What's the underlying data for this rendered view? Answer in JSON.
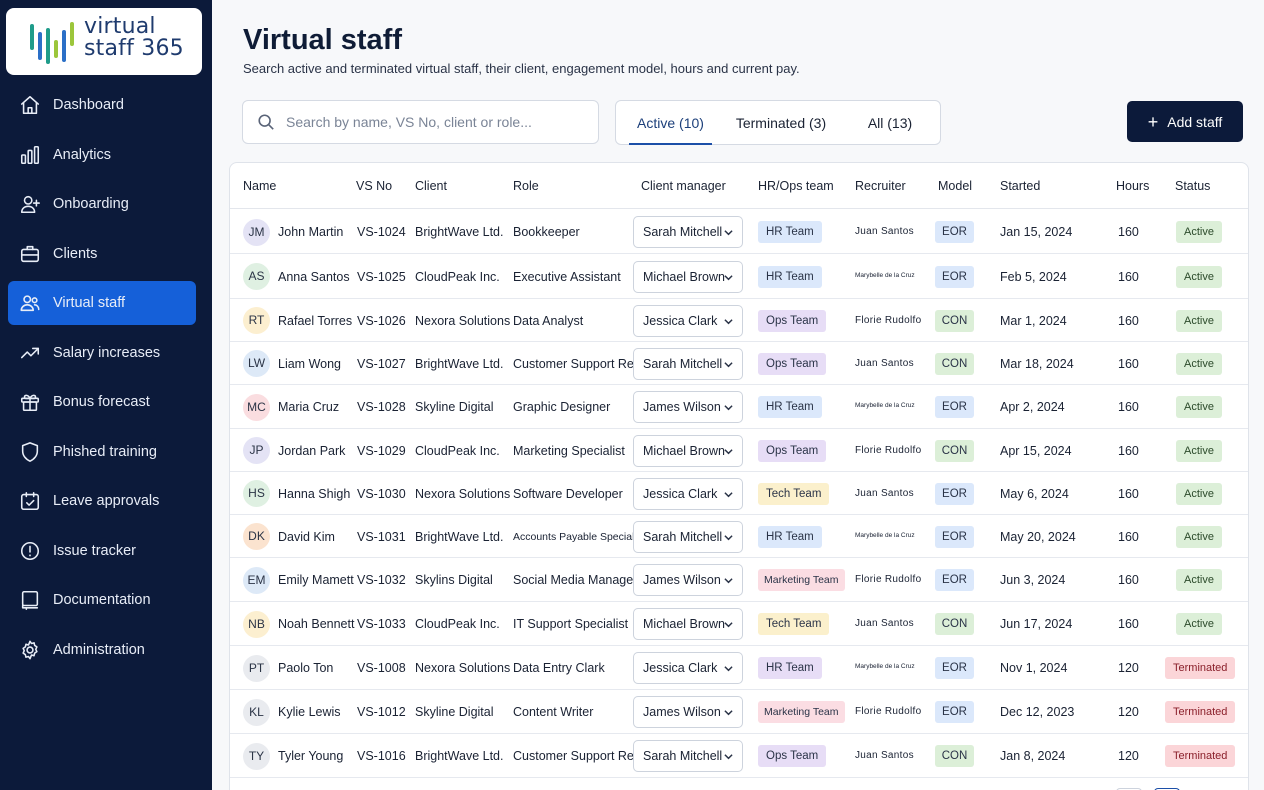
{
  "app": {
    "logo_line1": "virtual",
    "logo_line2": "staff 365"
  },
  "sidebar": {
    "items": [
      {
        "label": "Dashboard",
        "icon": "home-icon"
      },
      {
        "label": "Analytics",
        "icon": "bar-chart-icon"
      },
      {
        "label": "Onboarding",
        "icon": "user-add-icon"
      },
      {
        "label": "Clients",
        "icon": "briefcase-icon"
      },
      {
        "label": "Virtual staff",
        "icon": "users-icon",
        "active": true
      },
      {
        "label": "Salary increases",
        "icon": "trending-up-icon"
      },
      {
        "label": "Bonus forecast",
        "icon": "gift-icon"
      },
      {
        "label": "Phished training",
        "icon": "shield-icon"
      },
      {
        "label": "Leave approvals",
        "icon": "calendar-check-icon"
      },
      {
        "label": "Issue tracker",
        "icon": "alert-circle-icon"
      },
      {
        "label": "Documentation",
        "icon": "book-icon"
      },
      {
        "label": "Administration",
        "icon": "gear-icon"
      }
    ]
  },
  "header": {
    "title": "Virtual staff",
    "subtitle": "Search active and terminated virtual staff, their client, engagement model, hours and current pay."
  },
  "search": {
    "placeholder": "Search by name, VS No, client or role...",
    "value": ""
  },
  "tabs": [
    {
      "label": "Active (10)",
      "active": true
    },
    {
      "label": "Terminated (3)",
      "active": false
    },
    {
      "label": "All (13)",
      "active": false
    }
  ],
  "add_button": {
    "label": "Add staff"
  },
  "table": {
    "columns": [
      "Name",
      "VS No",
      "Client",
      "Role",
      "Client manager",
      "HR/Ops team",
      "Recruiter",
      "Model",
      "Started",
      "Hours",
      "Status"
    ],
    "rows": [
      {
        "initials": "JM",
        "avatar_color": "#e4e3f5",
        "name": "John Martin",
        "vs_no": "VS-1024",
        "client": "BrightWave Ltd.",
        "role": "Bookkeeper",
        "manager": "Sarah Mitchell",
        "team": "HR Team",
        "team_type": "hr",
        "recruiter": "Juan Santos",
        "model": "EOR",
        "started": "Jan 15, 2024",
        "hours": "160",
        "status": "Active"
      },
      {
        "initials": "AS",
        "avatar_color": "#dff0e2",
        "name": "Anna Santos",
        "vs_no": "VS-1025",
        "client": "CloudPeak Inc.",
        "role": "Executive Assistant",
        "manager": "Michael Brown",
        "team": "HR Team",
        "team_type": "hr",
        "recruiter": "Marybelle de la Cruz",
        "model": "EOR",
        "started": "Feb 5, 2024",
        "hours": "160",
        "status": "Active"
      },
      {
        "initials": "RT",
        "avatar_color": "#fcefd0",
        "name": "Rafael Torres",
        "vs_no": "VS-1026",
        "client": "Nexora Solutions",
        "role": "Data Analyst",
        "manager": "Jessica Clark",
        "team": "Ops Team",
        "team_type": "ops",
        "recruiter": "Florie Rudolfo",
        "model": "CON",
        "started": "Mar 1, 2024",
        "hours": "160",
        "status": "Active"
      },
      {
        "initials": "LW",
        "avatar_color": "#dde9f7",
        "name": "Liam Wong",
        "vs_no": "VS-1027",
        "client": "BrightWave Ltd.",
        "role": "Customer Support Rep",
        "manager": "Sarah Mitchell",
        "team": "Ops Team",
        "team_type": "ops",
        "recruiter": "Juan Santos",
        "model": "CON",
        "started": "Mar 18, 2024",
        "hours": "160",
        "status": "Active"
      },
      {
        "initials": "MC",
        "avatar_color": "#fadde0",
        "name": "Maria Cruz",
        "vs_no": "VS-1028",
        "client": "Skyline Digital",
        "role": "Graphic Designer",
        "manager": "James Wilson",
        "team": "HR Team",
        "team_type": "hr",
        "recruiter": "Marybelle de la Cruz",
        "model": "EOR",
        "started": "Apr 2, 2024",
        "hours": "160",
        "status": "Active"
      },
      {
        "initials": "JP",
        "avatar_color": "#e4e3f5",
        "name": "Jordan Park",
        "vs_no": "VS-1029",
        "client": "CloudPeak Inc.",
        "role": "Marketing Specialist",
        "manager": "Michael Brown",
        "team": "Ops Team",
        "team_type": "ops",
        "recruiter": "Florie Rudolfo",
        "model": "CON",
        "started": "Apr 15, 2024",
        "hours": "160",
        "status": "Active"
      },
      {
        "initials": "HS",
        "avatar_color": "#dff0e2",
        "name": "Hanna Shigh",
        "vs_no": "VS-1030",
        "client": "Nexora Solutions",
        "role": "Software Developer",
        "manager": "Jessica Clark",
        "team": "Tech Team",
        "team_type": "tech",
        "recruiter": "Juan Santos",
        "model": "EOR",
        "started": "May 6, 2024",
        "hours": "160",
        "status": "Active"
      },
      {
        "initials": "DK",
        "avatar_color": "#fbe3cf",
        "name": "David Kim",
        "vs_no": "VS-1031",
        "client": "BrightWave Ltd.",
        "role": "Accounts Payable Specialist",
        "manager": "Sarah Mitchell",
        "team": "HR Team",
        "team_type": "hr",
        "recruiter": "Marybelle de la Cruz",
        "model": "EOR",
        "started": "May 20, 2024",
        "hours": "160",
        "status": "Active"
      },
      {
        "initials": "EM",
        "avatar_color": "#dde9f7",
        "name": "Emily Mamett",
        "vs_no": "VS-1032",
        "client": "Skylins Digital",
        "role": "Social Media Manager",
        "manager": "James Wilson",
        "team": "Marketing Team",
        "team_type": "mkt",
        "recruiter": "Florie Rudolfo",
        "model": "EOR",
        "started": "Jun 3, 2024",
        "hours": "160",
        "status": "Active"
      },
      {
        "initials": "NB",
        "avatar_color": "#fcefd0",
        "name": "Noah Bennett",
        "vs_no": "VS-1033",
        "client": "CloudPeak Inc.",
        "role": "IT Support Specialist",
        "manager": "Michael Brown",
        "team": "Tech Team",
        "team_type": "tech",
        "recruiter": "Juan Santos",
        "model": "CON",
        "started": "Jun 17, 2024",
        "hours": "160",
        "status": "Active"
      },
      {
        "initials": "PT",
        "avatar_color": "#e9ebef",
        "name": "Paolo Ton",
        "vs_no": "VS-1008",
        "client": "Nexora Solutions",
        "role": "Data Entry Clark",
        "manager": "Jessica Clark",
        "team": "HR  Team",
        "team_type": "ops",
        "recruiter": "Marybelle de la Cruz",
        "model": "EOR",
        "started": "Nov 1, 2024",
        "hours": "120",
        "status": "Terminated"
      },
      {
        "initials": "KL",
        "avatar_color": "#e9ebef",
        "name": "Kylie Lewis",
        "vs_no": "VS-1012",
        "client": "Skyline Digital",
        "role": "Content Writer",
        "manager": "James Wilson",
        "team": "Marketing Team",
        "team_type": "mkt",
        "recruiter": "Florie Rudolfo",
        "model": "EOR",
        "started": "Dec 12, 2023",
        "hours": "120",
        "status": "Terminated"
      },
      {
        "initials": "TY",
        "avatar_color": "#e9ebef",
        "name": "Tyler Young",
        "vs_no": "VS-1016",
        "client": "BrightWave Ltd.",
        "role": "Customer Support Rep",
        "manager": "Sarah Mitchell",
        "team": "Ops Team",
        "team_type": "ops",
        "recruiter": "Juan Santos",
        "model": "CON",
        "started": "Jan 8, 2024",
        "hours": "120",
        "status": "Terminated"
      }
    ]
  }
}
